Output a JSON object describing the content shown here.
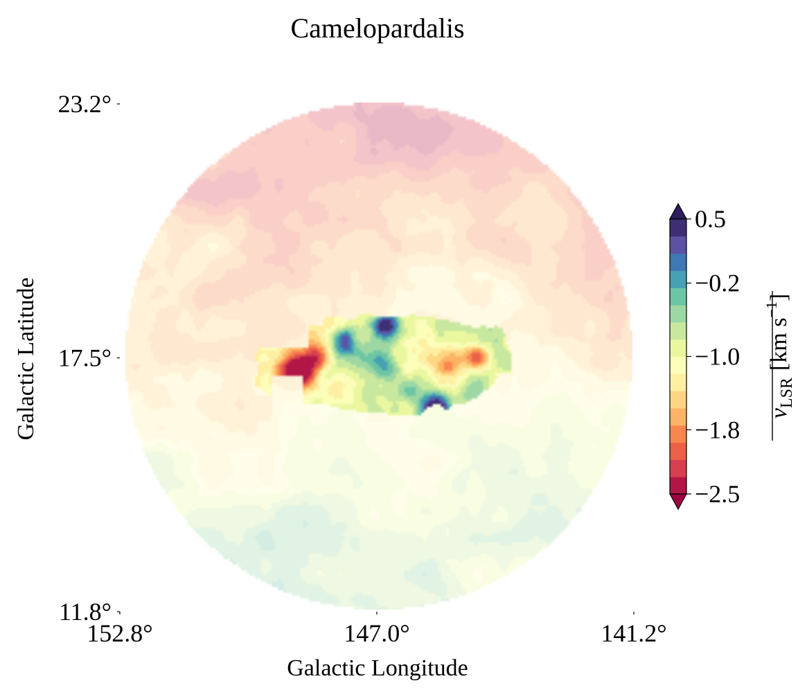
{
  "chart_data": {
    "type": "heatmap",
    "title": "Camelopardalis",
    "xlabel": "Galactic Longitude",
    "ylabel": "Galactic Latitude",
    "x_ticks": [
      "152.8°",
      "147.0°",
      "141.2°"
    ],
    "y_ticks": [
      "23.2°",
      "17.5°",
      "11.8°"
    ],
    "x_tick_values": [
      152.8,
      147.0,
      141.2
    ],
    "y_tick_values": [
      23.2,
      17.5,
      11.8
    ],
    "xlim": [
      152.8,
      141.2
    ],
    "ylim": [
      11.8,
      23.2
    ],
    "colorbar": {
      "label_main": "v",
      "label_sub": "LSR",
      "label_units": "[km s",
      "label_exp": "−1",
      "label_close": "]",
      "ticks": [
        "0.5",
        "−0.2",
        "−1.0",
        "−1.8",
        "−2.5"
      ],
      "tick_values": [
        0.5,
        -0.2,
        -1.0,
        -1.8,
        -2.5
      ],
      "range": [
        -2.5,
        0.5
      ],
      "levels": 16,
      "extend": "both",
      "colormap": "Spectral",
      "colormap_stops": [
        "#9e0142",
        "#d53e4f",
        "#f46d43",
        "#fdae61",
        "#fee08b",
        "#ffffbf",
        "#e6f598",
        "#abdda4",
        "#66c2a5",
        "#3288bd",
        "#5e4fa2",
        "#2d1e5e"
      ]
    },
    "background_alpha": 0.3,
    "cloud_region": "opaque full-saturation region near l≈147°, b≈17.5°",
    "grid": false
  }
}
